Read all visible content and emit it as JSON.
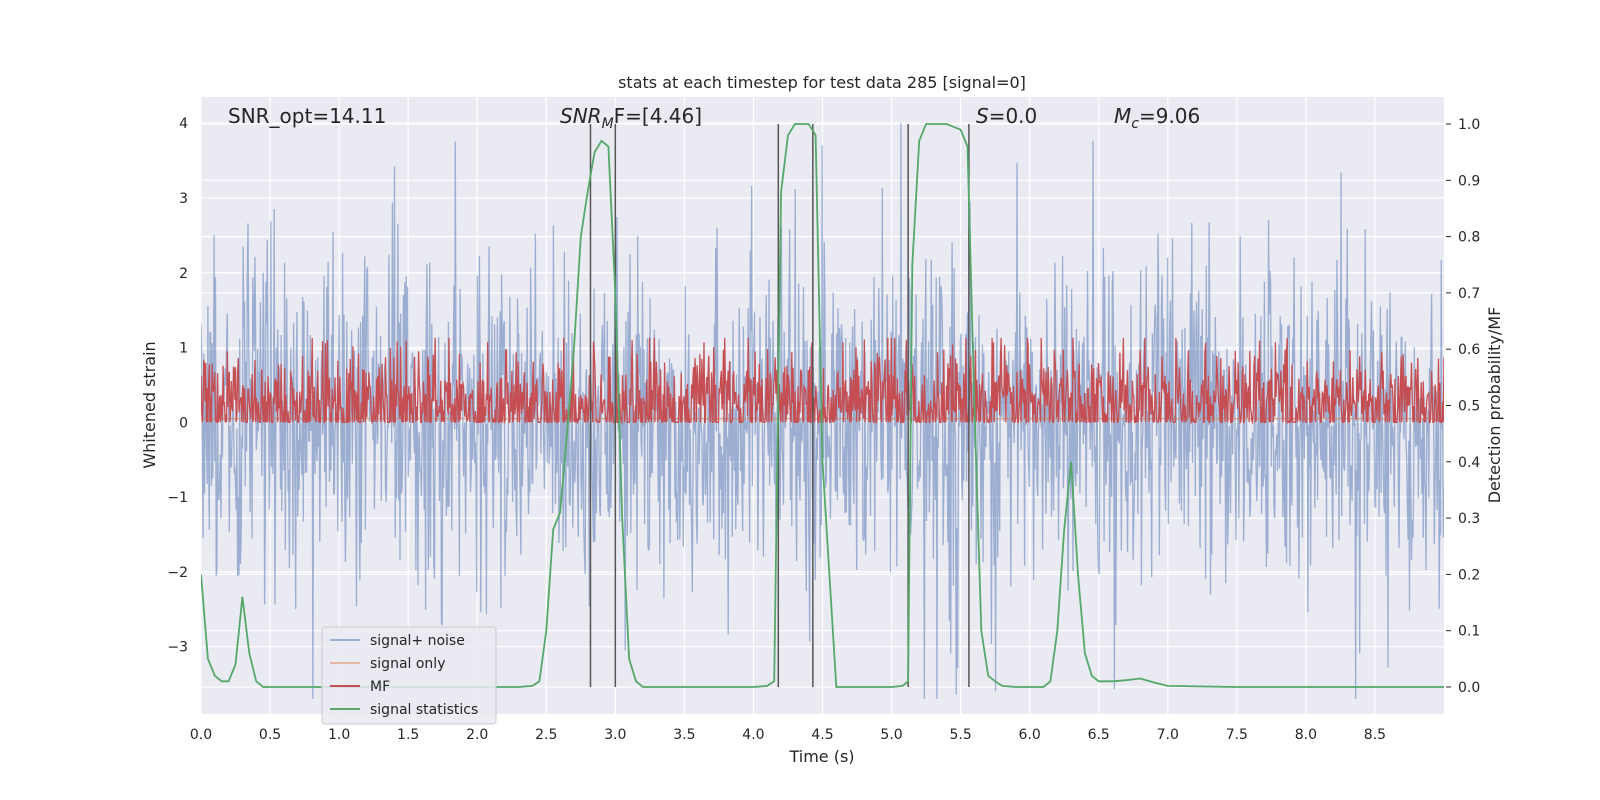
{
  "chart_data": {
    "type": "line",
    "title": "stats at each timestep for test data 285 [signal=0]",
    "xlabel": "Time (s)",
    "ylabel_left": "Whitened strain",
    "ylabel_right": "Detection probability/MF",
    "xlim": [
      0,
      9
    ],
    "ylim_left": [
      -3.9,
      4.35
    ],
    "ylim_right": [
      -0.048,
      1.048
    ],
    "xticks": [
      "0.0",
      "0.5",
      "1.0",
      "1.5",
      "2.0",
      "2.5",
      "3.0",
      "3.5",
      "4.0",
      "4.5",
      "5.0",
      "5.5",
      "6.0",
      "6.5",
      "7.0",
      "7.5",
      "8.0",
      "8.5"
    ],
    "yticks_left": [
      "−3",
      "−2",
      "−1",
      "0",
      "1",
      "2",
      "3",
      "4"
    ],
    "yticks_right": [
      "0.0",
      "0.1",
      "0.2",
      "0.3",
      "0.4",
      "0.5",
      "0.6",
      "0.7",
      "0.8",
      "0.9",
      "1.0"
    ],
    "grid": true,
    "legend_position": "lower-left",
    "annotations": {
      "snr_opt": "SNR_opt=14.11",
      "snr_mf_italic": "SNR",
      "snr_mf_sub": "M",
      "snr_mf_rest": "F=[4.46]",
      "s_italic": "S",
      "s_rest": "=0.0",
      "mc_italic": "M",
      "mc_sub": "c",
      "mc_rest": "=9.06"
    },
    "series": [
      {
        "name": "signal+ noise",
        "color": "#4c72b0",
        "kind": "noise",
        "amplitude_note": "noise envelope approx ±2.5, peaks to ±4"
      },
      {
        "name": "signal only",
        "color": "#dd8452",
        "kind": "flat",
        "y": 0.05
      },
      {
        "name": "MF",
        "color": "#c44e52",
        "kind": "mf",
        "mean_right": 0.5
      },
      {
        "name": "signal statistics",
        "color": "#55a868",
        "kind": "line",
        "x": [
          0.0,
          0.05,
          0.1,
          0.15,
          0.2,
          0.25,
          0.3,
          0.35,
          0.4,
          0.45,
          0.5,
          1.0,
          1.5,
          2.0,
          2.3,
          2.4,
          2.45,
          2.5,
          2.55,
          2.6,
          2.65,
          2.7,
          2.75,
          2.8,
          2.85,
          2.9,
          2.95,
          3.0,
          3.05,
          3.1,
          3.15,
          3.2,
          3.3,
          3.5,
          4.0,
          4.1,
          4.15,
          4.2,
          4.25,
          4.3,
          4.35,
          4.4,
          4.45,
          4.5,
          4.6,
          4.8,
          5.0,
          5.08,
          5.12,
          5.15,
          5.2,
          5.25,
          5.3,
          5.4,
          5.5,
          5.55,
          5.6,
          5.65,
          5.7,
          5.75,
          5.8,
          5.9,
          6.0,
          6.1,
          6.15,
          6.2,
          6.25,
          6.3,
          6.35,
          6.4,
          6.45,
          6.5,
          6.6,
          6.7,
          6.8,
          6.9,
          7.0,
          7.5,
          8.0,
          8.5,
          9.0
        ],
        "y": [
          0.2,
          0.05,
          0.02,
          0.01,
          0.01,
          0.04,
          0.16,
          0.06,
          0.01,
          0.0,
          0.0,
          0.0,
          0.0,
          0.0,
          0.0,
          0.002,
          0.01,
          0.1,
          0.28,
          0.31,
          0.45,
          0.6,
          0.8,
          0.88,
          0.95,
          0.97,
          0.96,
          0.7,
          0.3,
          0.05,
          0.01,
          0.0,
          0.0,
          0.0,
          0.0,
          0.002,
          0.01,
          0.88,
          0.98,
          1.0,
          1.0,
          1.0,
          0.98,
          0.4,
          0.0,
          0.0,
          0.0,
          0.002,
          0.01,
          0.75,
          0.97,
          1.0,
          1.0,
          1.0,
          0.99,
          0.96,
          0.5,
          0.1,
          0.02,
          0.01,
          0.002,
          0.0,
          0.0,
          0.0,
          0.01,
          0.1,
          0.28,
          0.4,
          0.2,
          0.06,
          0.02,
          0.01,
          0.01,
          0.012,
          0.015,
          0.008,
          0.002,
          0.0,
          0.0,
          0.0,
          0.0
        ]
      }
    ],
    "vlines": [
      2.82,
      3.0,
      4.18,
      4.43,
      5.12,
      5.56
    ]
  }
}
